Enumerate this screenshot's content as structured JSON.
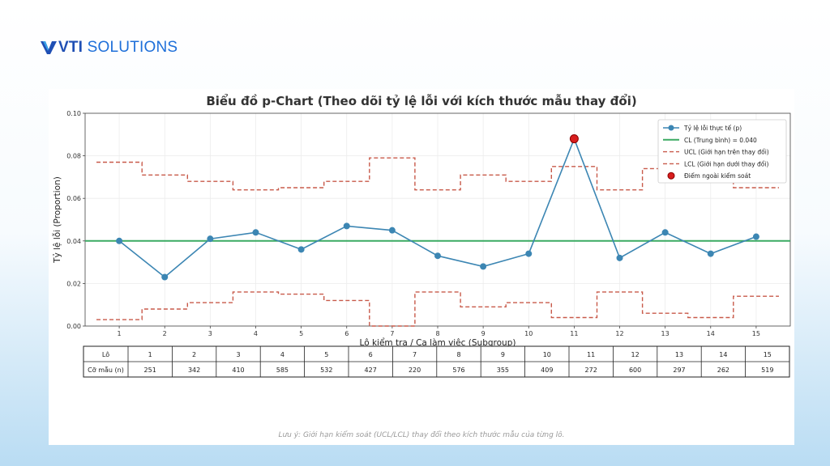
{
  "brand": {
    "prefix": "VTI",
    "suffix": " SOLUTIONS"
  },
  "colors": {
    "brand": "#1e6fd9",
    "series": "#3c86b3",
    "cl": "#3aaa62",
    "limits": "#c85a4a",
    "out_of_control": "#d81e1e"
  },
  "chart_data": {
    "type": "line",
    "title": "Biểu đồ p-Chart (Theo dõi tỷ lệ lỗi với kích thước mẫu thay đổi)",
    "xlabel": "Lô kiểm tra / Ca làm việc (Subgroup)",
    "ylabel": "Tỷ lệ lỗi (Proportion)",
    "ylim": [
      0,
      0.1
    ],
    "yticks": [
      "0.00",
      "0.02",
      "0.04",
      "0.06",
      "0.08",
      "0.10"
    ],
    "x": [
      1,
      2,
      3,
      4,
      5,
      6,
      7,
      8,
      9,
      10,
      11,
      12,
      13,
      14,
      15
    ],
    "grid": true,
    "legend_position": "top-right",
    "legend": [
      "Tỷ lệ lỗi thực tế (p)",
      "CL (Trung bình) = 0.040",
      "UCL (Giới hạn trên thay đổi)",
      "LCL (Giới hạn dưới thay đổi)",
      "Điểm ngoài kiểm soát"
    ],
    "series": [
      {
        "name": "Tỷ lệ lỗi thực tế (p)",
        "values": [
          0.04,
          0.023,
          0.041,
          0.044,
          0.036,
          0.047,
          0.045,
          0.033,
          0.028,
          0.034,
          0.088,
          0.032,
          0.044,
          0.034,
          0.042
        ]
      },
      {
        "name": "CL (Trung bình) = 0.040",
        "values": [
          0.04,
          0.04,
          0.04,
          0.04,
          0.04,
          0.04,
          0.04,
          0.04,
          0.04,
          0.04,
          0.04,
          0.04,
          0.04,
          0.04,
          0.04
        ]
      },
      {
        "name": "UCL (Giới hạn trên thay đổi)",
        "values": [
          0.077,
          0.071,
          0.068,
          0.064,
          0.065,
          0.068,
          0.079,
          0.064,
          0.071,
          0.068,
          0.075,
          0.064,
          0.074,
          0.076,
          0.065
        ]
      },
      {
        "name": "LCL (Giới hạn dưới thay đổi)",
        "values": [
          0.003,
          0.008,
          0.011,
          0.016,
          0.015,
          0.012,
          0.0,
          0.016,
          0.009,
          0.011,
          0.004,
          0.016,
          0.006,
          0.004,
          0.014
        ]
      }
    ],
    "out_of_control": [
      {
        "x": 11,
        "y": 0.088
      }
    ]
  },
  "table": {
    "row_headers": [
      "Lô",
      "Cỡ mẫu (n)"
    ],
    "lots": [
      "1",
      "2",
      "3",
      "4",
      "5",
      "6",
      "7",
      "8",
      "9",
      "10",
      "11",
      "12",
      "13",
      "14",
      "15"
    ],
    "sample_sizes": [
      "251",
      "342",
      "410",
      "585",
      "532",
      "427",
      "220",
      "576",
      "355",
      "409",
      "272",
      "600",
      "297",
      "262",
      "519"
    ]
  },
  "note": "Lưu ý: Giới hạn kiểm soát (UCL/LCL) thay đổi theo kích thước mẫu của từng lô."
}
